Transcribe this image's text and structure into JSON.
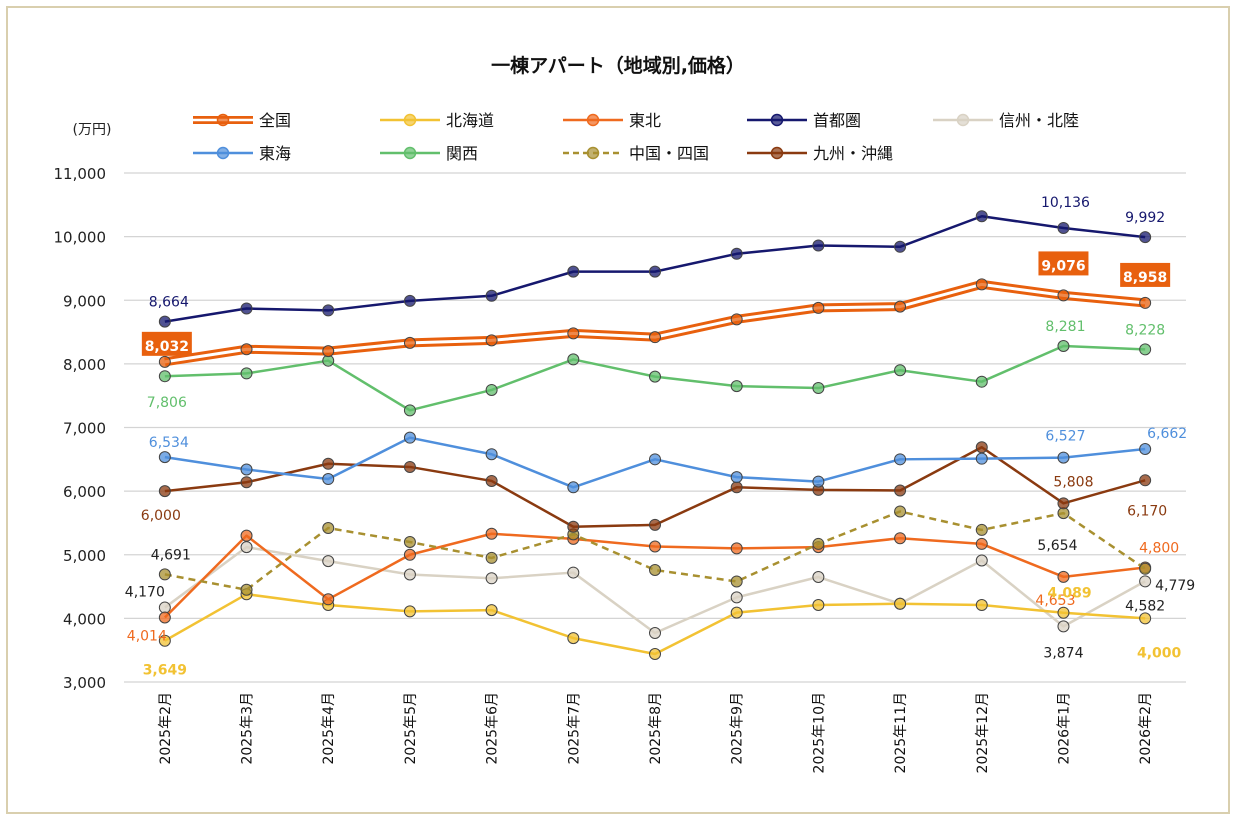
{
  "chart_data": {
    "type": "line",
    "title": "一棟アパート（地域別,価格）",
    "yunit": "(万円)",
    "ylim": [
      3000,
      11000
    ],
    "yticks": [
      3000,
      4000,
      5000,
      6000,
      7000,
      8000,
      9000,
      10000,
      11000
    ],
    "ytick_labels": [
      "3,000",
      "4,000",
      "5,000",
      "6,000",
      "7,000",
      "8,000",
      "9,000",
      "10,000",
      "11,000"
    ],
    "grid": true,
    "legend_position": "top",
    "categories": [
      "2025年2月",
      "2025年3月",
      "2025年4月",
      "2025年5月",
      "2025年6月",
      "2025年7月",
      "2025年8月",
      "2025年9月",
      "2025年10月",
      "2025年11月",
      "2025年12月",
      "2026年1月",
      "2026年2月"
    ],
    "series": [
      {
        "name": "全国",
        "color": "#e8600e",
        "style": "double",
        "values": [
          8032,
          8230,
          8200,
          8330,
          8370,
          8480,
          8420,
          8700,
          8880,
          8900,
          9250,
          9076,
          8958
        ]
      },
      {
        "name": "北海道",
        "color": "#f2c233",
        "style": "solid",
        "values": [
          3649,
          4380,
          4210,
          4110,
          4130,
          3690,
          3440,
          4090,
          4210,
          4230,
          4210,
          4089,
          4000
        ]
      },
      {
        "name": "東北",
        "color": "#ef6a1f",
        "style": "solid",
        "values": [
          4014,
          5300,
          4300,
          5000,
          5330,
          5250,
          5130,
          5100,
          5120,
          5260,
          5170,
          4653,
          4800
        ]
      },
      {
        "name": "首都圏",
        "color": "#16186e",
        "style": "solid",
        "values": [
          8664,
          8870,
          8840,
          8990,
          9070,
          9450,
          9450,
          9730,
          9860,
          9840,
          10320,
          10136,
          9992
        ]
      },
      {
        "name": "信州・北陸",
        "color": "#d9d2c4",
        "style": "solid",
        "values": [
          4170,
          5120,
          4900,
          4690,
          4630,
          4720,
          3770,
          4330,
          4650,
          4230,
          4910,
          3874,
          4582
        ]
      },
      {
        "name": "東海",
        "color": "#4f8fdc",
        "style": "solid",
        "values": [
          6534,
          6340,
          6190,
          6840,
          6580,
          6060,
          6500,
          6220,
          6150,
          6500,
          6510,
          6527,
          6662
        ]
      },
      {
        "name": "関西",
        "color": "#62bf6c",
        "style": "solid",
        "values": [
          7806,
          7850,
          8050,
          7270,
          7590,
          8070,
          7800,
          7650,
          7620,
          7900,
          7720,
          8281,
          8228
        ]
      },
      {
        "name": "中国・四国",
        "color": "#a89030",
        "style": "dashed",
        "values": [
          4691,
          4450,
          5420,
          5200,
          4950,
          5320,
          4760,
          4580,
          5170,
          5680,
          5390,
          5654,
          4779
        ]
      },
      {
        "name": "九州・沖縄",
        "color": "#8a3a10",
        "style": "solid",
        "values": [
          6000,
          6140,
          6430,
          6380,
          6160,
          5440,
          5470,
          6060,
          6020,
          6010,
          6690,
          5808,
          6170
        ]
      }
    ],
    "data_labels": [
      {
        "series": 0,
        "index": 0,
        "text": "8,032",
        "boxed": true
      },
      {
        "series": 0,
        "index": 11,
        "text": "9,076",
        "boxed": true
      },
      {
        "series": 0,
        "index": 12,
        "text": "8,958",
        "boxed": true
      },
      {
        "series": 3,
        "index": 0,
        "text": "8,664"
      },
      {
        "series": 3,
        "index": 11,
        "text": "10,136"
      },
      {
        "series": 3,
        "index": 12,
        "text": "9,992"
      },
      {
        "series": 6,
        "index": 0,
        "text": "7,806"
      },
      {
        "series": 6,
        "index": 11,
        "text": "8,281"
      },
      {
        "series": 6,
        "index": 12,
        "text": "8,228"
      },
      {
        "series": 5,
        "index": 0,
        "text": "6,534"
      },
      {
        "series": 5,
        "index": 11,
        "text": "6,527"
      },
      {
        "series": 5,
        "index": 12,
        "text": "6,662"
      },
      {
        "series": 8,
        "index": 0,
        "text": "6,000"
      },
      {
        "series": 8,
        "index": 11,
        "text": "5,808"
      },
      {
        "series": 8,
        "index": 12,
        "text": "6,170"
      },
      {
        "series": 7,
        "index": 0,
        "text": "4,691"
      },
      {
        "series": 7,
        "index": 11,
        "text": "5,654"
      },
      {
        "series": 7,
        "index": 12,
        "text": "4,779"
      },
      {
        "series": 4,
        "index": 0,
        "text": "4,170"
      },
      {
        "series": 4,
        "index": 11,
        "text": "3,874"
      },
      {
        "series": 4,
        "index": 12,
        "text": "4,582"
      },
      {
        "series": 2,
        "index": 0,
        "text": "4,014"
      },
      {
        "series": 2,
        "index": 11,
        "text": "4,653"
      },
      {
        "series": 2,
        "index": 12,
        "text": "4,800"
      },
      {
        "series": 1,
        "index": 0,
        "text": "3,649",
        "bold": true
      },
      {
        "series": 1,
        "index": 11,
        "text": "4,089",
        "bold": true
      },
      {
        "series": 1,
        "index": 12,
        "text": "4,000",
        "bold": true
      }
    ]
  }
}
